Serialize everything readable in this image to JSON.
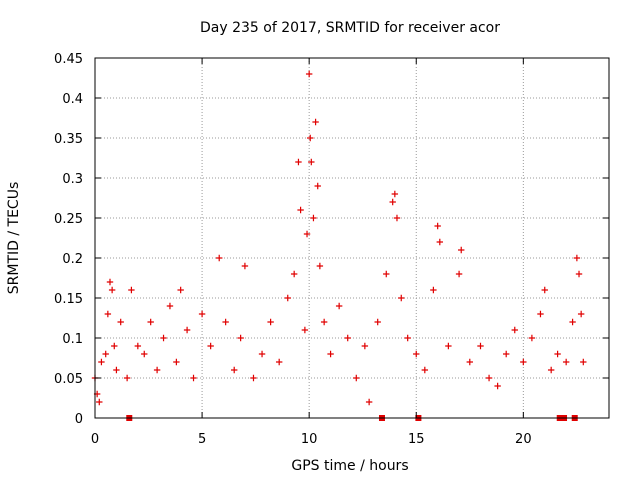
{
  "chart_data": {
    "type": "scatter",
    "title": "Day 235 of 2017, SRMTID for receiver acor",
    "xlabel": "GPS time / hours",
    "ylabel": "SRMTID / TECUs",
    "xlim": [
      0,
      24
    ],
    "ylim": [
      0,
      0.45
    ],
    "grid": true,
    "marker": "+",
    "color": "#e00000",
    "x_ticks": [
      0,
      5,
      10,
      15,
      20
    ],
    "x_tick_labels": [
      "0",
      "5",
      "10",
      "15",
      "20"
    ],
    "y_ticks": [
      0,
      0.05,
      0.1,
      0.15,
      0.2,
      0.25,
      0.3,
      0.35,
      0.4,
      0.45
    ],
    "y_tick_labels": [
      "0",
      "0.05",
      "0.1",
      "0.15",
      "0.2",
      "0.25",
      "0.3",
      "0.35",
      "0.4",
      "0.45"
    ],
    "gap_markers_x": [
      1.6,
      13.4,
      15.1,
      21.7,
      21.9,
      22.4
    ],
    "representative_points": [
      [
        0.0,
        0.05
      ],
      [
        0.1,
        0.03
      ],
      [
        0.2,
        0.02
      ],
      [
        0.3,
        0.07
      ],
      [
        0.5,
        0.08
      ],
      [
        0.6,
        0.13
      ],
      [
        0.7,
        0.17
      ],
      [
        0.8,
        0.16
      ],
      [
        0.9,
        0.09
      ],
      [
        1.0,
        0.06
      ],
      [
        1.2,
        0.12
      ],
      [
        1.5,
        0.05
      ],
      [
        1.7,
        0.16
      ],
      [
        2.0,
        0.09
      ],
      [
        2.3,
        0.08
      ],
      [
        2.6,
        0.12
      ],
      [
        2.9,
        0.06
      ],
      [
        3.2,
        0.1
      ],
      [
        3.5,
        0.14
      ],
      [
        3.8,
        0.07
      ],
      [
        4.0,
        0.16
      ],
      [
        4.3,
        0.11
      ],
      [
        4.6,
        0.05
      ],
      [
        5.0,
        0.13
      ],
      [
        5.4,
        0.09
      ],
      [
        5.8,
        0.2
      ],
      [
        6.1,
        0.12
      ],
      [
        6.5,
        0.06
      ],
      [
        6.8,
        0.1
      ],
      [
        7.0,
        0.19
      ],
      [
        7.4,
        0.05
      ],
      [
        7.8,
        0.08
      ],
      [
        8.2,
        0.12
      ],
      [
        8.6,
        0.07
      ],
      [
        9.0,
        0.15
      ],
      [
        9.3,
        0.18
      ],
      [
        9.5,
        0.32
      ],
      [
        9.6,
        0.26
      ],
      [
        9.8,
        0.11
      ],
      [
        9.9,
        0.23
      ],
      [
        10.0,
        0.43
      ],
      [
        10.05,
        0.35
      ],
      [
        10.1,
        0.32
      ],
      [
        10.2,
        0.25
      ],
      [
        10.3,
        0.37
      ],
      [
        10.4,
        0.29
      ],
      [
        10.5,
        0.19
      ],
      [
        10.7,
        0.12
      ],
      [
        11.0,
        0.08
      ],
      [
        11.4,
        0.14
      ],
      [
        11.8,
        0.1
      ],
      [
        12.2,
        0.05
      ],
      [
        12.6,
        0.09
      ],
      [
        12.8,
        0.02
      ],
      [
        13.2,
        0.12
      ],
      [
        13.6,
        0.18
      ],
      [
        13.9,
        0.27
      ],
      [
        14.0,
        0.28
      ],
      [
        14.1,
        0.25
      ],
      [
        14.3,
        0.15
      ],
      [
        14.6,
        0.1
      ],
      [
        15.0,
        0.08
      ],
      [
        15.4,
        0.06
      ],
      [
        15.8,
        0.16
      ],
      [
        16.0,
        0.24
      ],
      [
        16.1,
        0.22
      ],
      [
        16.5,
        0.09
      ],
      [
        17.0,
        0.18
      ],
      [
        17.1,
        0.21
      ],
      [
        17.5,
        0.07
      ],
      [
        18.0,
        0.09
      ],
      [
        18.4,
        0.05
      ],
      [
        18.8,
        0.04
      ],
      [
        19.2,
        0.08
      ],
      [
        19.6,
        0.11
      ],
      [
        20.0,
        0.07
      ],
      [
        20.4,
        0.1
      ],
      [
        20.8,
        0.13
      ],
      [
        21.0,
        0.16
      ],
      [
        21.3,
        0.06
      ],
      [
        21.6,
        0.08
      ],
      [
        22.0,
        0.07
      ],
      [
        22.3,
        0.12
      ],
      [
        22.5,
        0.2
      ],
      [
        22.6,
        0.18
      ],
      [
        22.7,
        0.13
      ],
      [
        22.8,
        0.07
      ]
    ]
  }
}
